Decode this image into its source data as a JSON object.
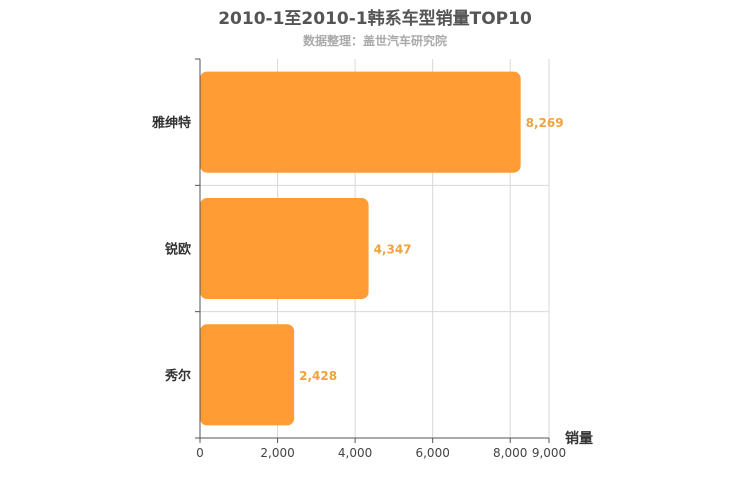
{
  "chart_data": {
    "type": "bar",
    "orientation": "horizontal",
    "title": "2010-1至2010-1韩系车型销量TOP10",
    "subtitle": "数据整理：盖世汽车研究院",
    "categories": [
      "雅绅特",
      "锐欧",
      "秀尔"
    ],
    "values": [
      8269,
      4347,
      2428
    ],
    "value_labels": [
      "8,269",
      "4,347",
      "2,428"
    ],
    "xlabel": "销量",
    "xlim": [
      0,
      9000
    ],
    "xticks": [
      0,
      2000,
      4000,
      6000,
      8000,
      9000
    ],
    "xtick_labels": [
      "0",
      "2,000",
      "4,000",
      "6,000",
      "8,000",
      "9,000"
    ],
    "grid": true,
    "bar_color": "#ff9c33",
    "label_color": "#f0a23c"
  }
}
